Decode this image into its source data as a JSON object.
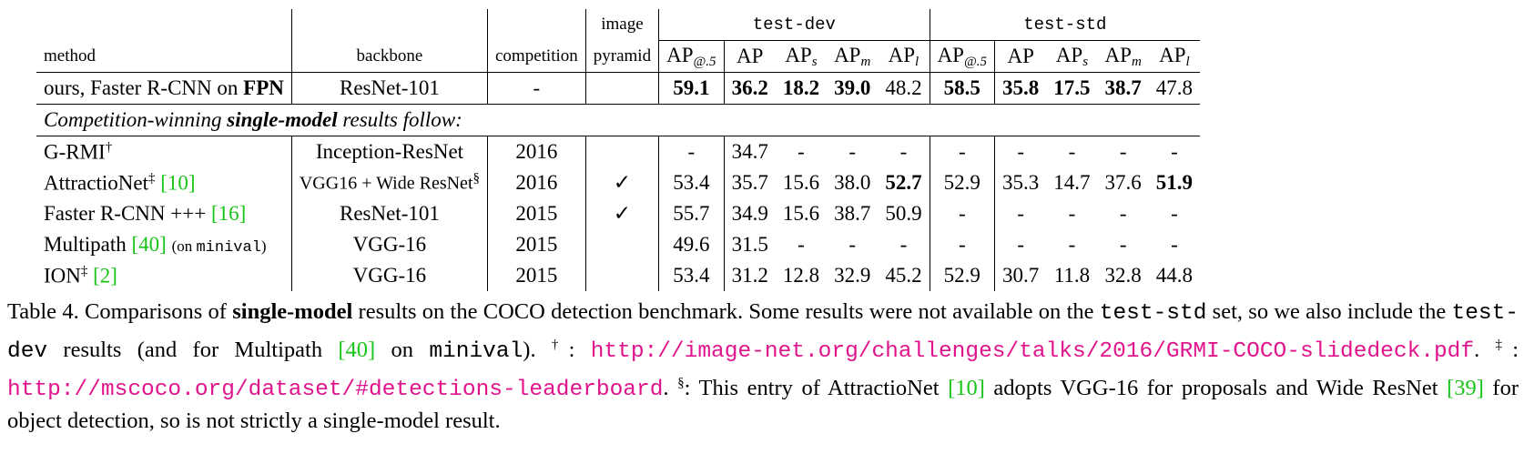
{
  "header": {
    "method": "method",
    "backbone": "backbone",
    "competition": "competition",
    "image_pyramid_line1": "image",
    "image_pyramid_line2": "pyramid",
    "group_dev": "test-dev",
    "group_std": "test-std",
    "metric_ap_base": "AP",
    "sub_50": "@.5",
    "sub_s": "s",
    "sub_m": "m",
    "sub_l": "l"
  },
  "ours": {
    "method_prefix": "ours, Faster R-CNN on ",
    "method_bold": "FPN",
    "backbone": "ResNet-101",
    "competition": "-",
    "pyramid": "",
    "dev": [
      "59.1",
      "36.2",
      "18.2",
      "39.0",
      "48.2"
    ],
    "std": [
      "58.5",
      "35.8",
      "17.5",
      "38.7",
      "47.8"
    ]
  },
  "section": {
    "prefix": "Competition-winning ",
    "bold": "single-model",
    "suffix": " results follow:"
  },
  "rows": [
    {
      "method": "G-RMI",
      "mark": "†",
      "ref": "",
      "note": "",
      "backbone": "Inception-ResNet",
      "backbone_mark": "",
      "competition": "2016",
      "pyramid": "",
      "dev": [
        "-",
        "34.7",
        "-",
        "-",
        "-"
      ],
      "std": [
        "-",
        "-",
        "-",
        "-",
        "-"
      ]
    },
    {
      "method": "AttractioNet",
      "mark": "‡",
      "ref": "[10]",
      "note": "",
      "backbone": "VGG16 + Wide ResNet",
      "backbone_mark": "§",
      "competition": "2016",
      "pyramid": "✓",
      "dev": [
        "53.4",
        "35.7",
        "15.6",
        "38.0",
        "52.7"
      ],
      "std": [
        "52.9",
        "35.3",
        "14.7",
        "37.6",
        "51.9"
      ]
    },
    {
      "method": "Faster R-CNN +++",
      "mark": "",
      "ref": "[16]",
      "note": "",
      "backbone": "ResNet-101",
      "backbone_mark": "",
      "competition": "2015",
      "pyramid": "✓",
      "dev": [
        "55.7",
        "34.9",
        "15.6",
        "38.7",
        "50.9"
      ],
      "std": [
        "-",
        "-",
        "-",
        "-",
        "-"
      ]
    },
    {
      "method": "Multipath",
      "mark": "",
      "ref": "[40]",
      "note_prefix": "(on ",
      "note_mono": "minival",
      "note_suffix": ")",
      "backbone": "VGG-16",
      "backbone_mark": "",
      "competition": "2015",
      "pyramid": "",
      "dev": [
        "49.6",
        "31.5",
        "-",
        "-",
        "-"
      ],
      "std": [
        "-",
        "-",
        "-",
        "-",
        "-"
      ]
    },
    {
      "method": "ION",
      "mark": "‡",
      "ref": "[2]",
      "note": "",
      "backbone": "VGG-16",
      "backbone_mark": "",
      "competition": "2015",
      "pyramid": "",
      "dev": [
        "53.4",
        "31.2",
        "12.8",
        "32.9",
        "45.2"
      ],
      "std": [
        "52.9",
        "30.7",
        "11.8",
        "32.8",
        "44.8"
      ]
    }
  ],
  "bold_cells": {
    "AttractioNet_dev_4": true,
    "AttractioNet_std_4": true
  },
  "caption": {
    "t1": "Table 4. Comparisons of ",
    "t1b": "single-model",
    "t2": " results on the COCO detection benchmark.  Some results were not available on the ",
    "m1": "test-std",
    "t3": " set, so we also include the ",
    "m2": "test-dev",
    "t4": " results (and for Multipath ",
    "r40": "[40]",
    "t5": " on ",
    "m3": "minival",
    "t6": "). ",
    "dag": "†",
    "t7": ": ",
    "url1": "http://image-net.org/challenges/talks/2016/GRMI-COCO-slidedeck.pdf",
    "t8": ". ",
    "ddag": "‡",
    "t9": ": ",
    "url2": "http://mscoco.org/dataset/#detections-leaderboard",
    "t10": ". ",
    "sect": "§",
    "t11": ": This entry of AttractioNet ",
    "r10": "[10]",
    "t12": " adopts VGG-16 for proposals and Wide ResNet ",
    "r39": "[39]",
    "t13": " for object detection, so is not strictly a single-model result."
  }
}
